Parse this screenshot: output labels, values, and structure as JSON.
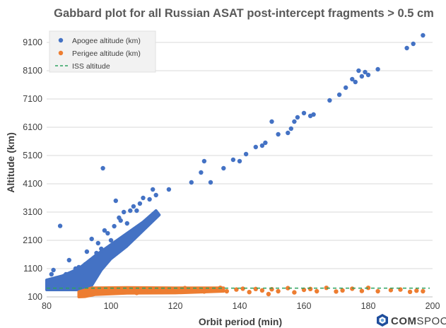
{
  "chart_data": {
    "type": "scatter",
    "title": "Gabbard plot for all Russian ASAT post-intercept fragments > 0.5 cm",
    "xlabel": "Orbit period  (min)",
    "ylabel": "Altitude (km)",
    "xlim": [
      80,
      200
    ],
    "ylim": [
      100,
      9600
    ],
    "x_ticks": [
      "80",
      "100",
      "120",
      "140",
      "160",
      "180",
      "200"
    ],
    "y_ticks": [
      "100",
      "1100",
      "2100",
      "3100",
      "4100",
      "5100",
      "6100",
      "7100",
      "8100",
      "9100"
    ],
    "grid": "horizontal",
    "legend_position": "top-left",
    "colors": {
      "apogee": "#4472C4",
      "perigee": "#ED7D31",
      "iss": "#2CA25F"
    },
    "series": [
      {
        "name": "Apogee altitude (km)",
        "kind": "points",
        "color": "#4472C4",
        "points": [
          [
            80.3,
            430
          ],
          [
            81.0,
            460
          ],
          [
            81.5,
            900
          ],
          [
            82.1,
            1050
          ],
          [
            83.0,
            760
          ],
          [
            84.2,
            2610
          ],
          [
            85.0,
            560
          ],
          [
            86.0,
            900
          ],
          [
            87.0,
            1400
          ],
          [
            88.0,
            850
          ],
          [
            89.0,
            1100
          ],
          [
            90.0,
            1150
          ],
          [
            91.0,
            850
          ],
          [
            92.0,
            1250
          ],
          [
            92.5,
            1700
          ],
          [
            93.5,
            1050
          ],
          [
            94.0,
            2150
          ],
          [
            94.5,
            1400
          ],
          [
            95.5,
            1650
          ],
          [
            96.0,
            2000
          ],
          [
            97.0,
            1800
          ],
          [
            97.5,
            4650
          ],
          [
            98.0,
            2450
          ],
          [
            99.0,
            2350
          ],
          [
            100.0,
            2100
          ],
          [
            101.0,
            2600
          ],
          [
            101.5,
            3500
          ],
          [
            102.5,
            2900
          ],
          [
            103.0,
            2800
          ],
          [
            104.0,
            3100
          ],
          [
            105.0,
            2700
          ],
          [
            106.0,
            3150
          ],
          [
            107.0,
            3300
          ],
          [
            108.0,
            3150
          ],
          [
            109.0,
            3400
          ],
          [
            110.0,
            3600
          ],
          [
            112.0,
            3550
          ],
          [
            113.0,
            3900
          ],
          [
            114.0,
            3700
          ],
          [
            118.0,
            3900
          ],
          [
            125.0,
            4150
          ],
          [
            128.0,
            4500
          ],
          [
            129.0,
            4900
          ],
          [
            131.0,
            4150
          ],
          [
            135.0,
            4650
          ],
          [
            138.0,
            4950
          ],
          [
            140.0,
            4900
          ],
          [
            142.0,
            5150
          ],
          [
            145.0,
            5400
          ],
          [
            147.0,
            5450
          ],
          [
            148.0,
            5550
          ],
          [
            150.0,
            6300
          ],
          [
            152.0,
            5850
          ],
          [
            155.0,
            5900
          ],
          [
            156.0,
            6050
          ],
          [
            157.0,
            6300
          ],
          [
            158.0,
            6450
          ],
          [
            160.0,
            6600
          ],
          [
            162.0,
            6500
          ],
          [
            163.0,
            6550
          ],
          [
            168.0,
            7050
          ],
          [
            171.0,
            7250
          ],
          [
            173.0,
            7500
          ],
          [
            175.0,
            7800
          ],
          [
            176.0,
            7700
          ],
          [
            177.0,
            8100
          ],
          [
            178.0,
            7900
          ],
          [
            179.0,
            8050
          ],
          [
            180.0,
            7950
          ],
          [
            183.0,
            8150
          ],
          [
            192.0,
            8900
          ],
          [
            194.0,
            9050
          ],
          [
            197.0,
            9350
          ]
        ]
      },
      {
        "name": "Perigee altitude (km)",
        "kind": "points",
        "color": "#ED7D31",
        "points": [
          [
            91.0,
            150
          ],
          [
            92.0,
            300
          ],
          [
            93.0,
            240
          ],
          [
            94.0,
            350
          ],
          [
            95.0,
            280
          ],
          [
            96.0,
            340
          ],
          [
            98.0,
            260
          ],
          [
            100.0,
            370
          ],
          [
            103.0,
            310
          ],
          [
            106.0,
            360
          ],
          [
            108.0,
            240
          ],
          [
            110.0,
            390
          ],
          [
            112.0,
            300
          ],
          [
            115.0,
            330
          ],
          [
            118.0,
            280
          ],
          [
            120.0,
            360
          ],
          [
            123.0,
            410
          ],
          [
            126.0,
            340
          ],
          [
            129.0,
            290
          ],
          [
            131.0,
            370
          ],
          [
            134.0,
            420
          ],
          [
            136.0,
            300
          ],
          [
            139.0,
            360
          ],
          [
            141.0,
            390
          ],
          [
            143.0,
            270
          ],
          [
            145.0,
            380
          ],
          [
            147.0,
            330
          ],
          [
            149.0,
            200
          ],
          [
            150.0,
            370
          ],
          [
            152.0,
            300
          ],
          [
            155.0,
            410
          ],
          [
            157.0,
            260
          ],
          [
            160.0,
            350
          ],
          [
            162.0,
            380
          ],
          [
            164.0,
            300
          ],
          [
            167.0,
            420
          ],
          [
            170.0,
            290
          ],
          [
            172.0,
            330
          ],
          [
            175.0,
            390
          ],
          [
            178.0,
            310
          ],
          [
            180.0,
            420
          ],
          [
            183.0,
            300
          ],
          [
            187.0,
            340
          ],
          [
            190.0,
            360
          ],
          [
            193.0,
            280
          ],
          [
            195.0,
            320
          ],
          [
            197.0,
            300
          ]
        ]
      },
      {
        "name": "ISS altitude",
        "kind": "line",
        "color": "#2CA25F",
        "y": 410,
        "x_range": [
          80,
          200
        ]
      }
    ],
    "dense_bands": [
      {
        "series": "Apogee altitude (km)",
        "color": "#4472C4",
        "polygon": [
          [
            80,
            350
          ],
          [
            80,
            700
          ],
          [
            85,
            850
          ],
          [
            90,
            1100
          ],
          [
            95,
            1550
          ],
          [
            100,
            1950
          ],
          [
            105,
            2350
          ],
          [
            110,
            2750
          ],
          [
            114,
            3150
          ],
          [
            115,
            3000
          ],
          [
            110,
            2450
          ],
          [
            105,
            1900
          ],
          [
            100,
            1450
          ],
          [
            97,
            1050
          ],
          [
            94,
            500
          ],
          [
            92,
            350
          ]
        ]
      },
      {
        "series": "Perigee altitude (km)",
        "color": "#ED7D31",
        "polygon": [
          [
            90,
            100
          ],
          [
            90,
            280
          ],
          [
            94,
            420
          ],
          [
            105,
            430
          ],
          [
            120,
            420
          ],
          [
            135,
            420
          ],
          [
            135,
            300
          ],
          [
            120,
            240
          ],
          [
            105,
            230
          ],
          [
            95,
            180
          ],
          [
            92,
            110
          ]
        ]
      }
    ]
  },
  "logo": {
    "text_bold": "COM",
    "text_regular": "SPOC"
  }
}
